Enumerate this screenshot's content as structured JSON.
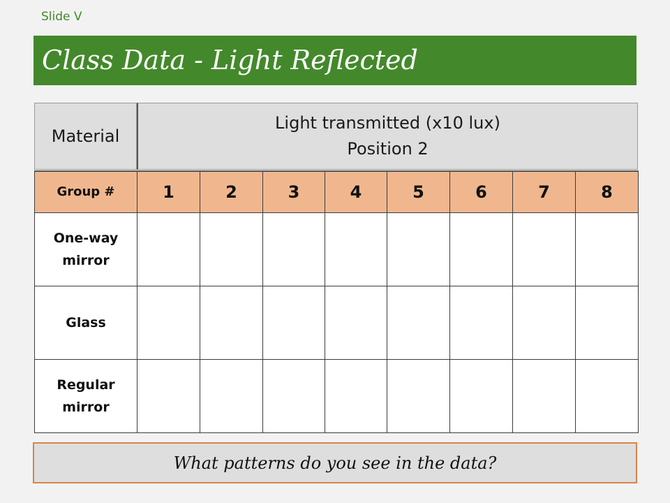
{
  "slide_label": "Slide V",
  "title": "Class Data - Light Reflected",
  "table": {
    "header_material": "Material",
    "header_light_line1": "Light transmitted (x10 lux)",
    "header_light_line2": "Position 2",
    "group_label": "Group #",
    "groups": [
      "1",
      "2",
      "3",
      "4",
      "5",
      "6",
      "7",
      "8"
    ],
    "rows": [
      {
        "label_line1": "One-way",
        "label_line2": "mirror"
      },
      {
        "label_line1": "Glass",
        "label_line2": ""
      },
      {
        "label_line1": "Regular",
        "label_line2": "mirror"
      }
    ]
  },
  "question": "What patterns do you see in the data?",
  "colors": {
    "title_bar": "#43892b",
    "group_row": "#f0b78e",
    "header_row": "#dedede",
    "question_border": "#d9834a"
  }
}
